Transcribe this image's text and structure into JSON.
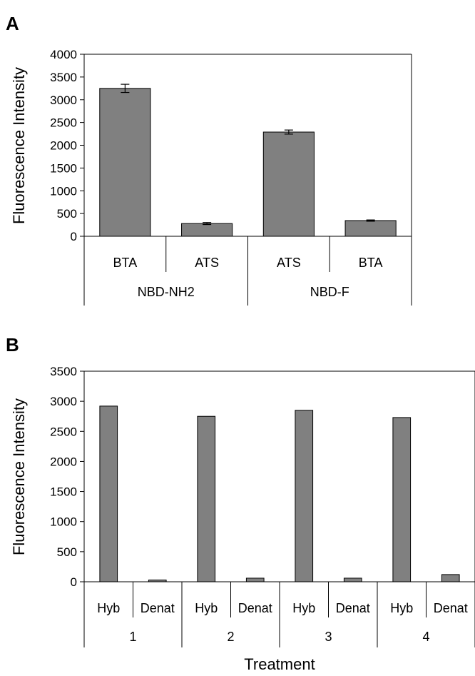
{
  "chart_data": [
    {
      "type": "bar",
      "panel_label": "A",
      "ylabel": "Fluorescence Intensity",
      "xlabel": "",
      "ylim": [
        0,
        4000
      ],
      "yticks": [
        0,
        500,
        1000,
        1500,
        2000,
        2500,
        3000,
        3500,
        4000
      ],
      "categories": [
        "BTA",
        "ATS",
        "ATS",
        "BTA"
      ],
      "groups": [
        {
          "label": "NBD-NH2",
          "span": 2
        },
        {
          "label": "NBD-F",
          "span": 2
        }
      ],
      "values": [
        3250,
        280,
        2290,
        345
      ],
      "errors": [
        90,
        22,
        45,
        14
      ],
      "bar_color": "#808080",
      "grid": false
    },
    {
      "type": "bar",
      "panel_label": "B",
      "ylabel": "Fluorescence Intensity",
      "xlabel": "Treatment",
      "ylim": [
        0,
        3500
      ],
      "yticks": [
        0,
        500,
        1000,
        1500,
        2000,
        2500,
        3000,
        3500
      ],
      "categories": [
        "Hyb",
        "Denat",
        "Hyb",
        "Denat",
        "Hyb",
        "Denat",
        "Hyb",
        "Denat"
      ],
      "groups": [
        {
          "label": "1",
          "span": 2
        },
        {
          "label": "2",
          "span": 2
        },
        {
          "label": "3",
          "span": 2
        },
        {
          "label": "4",
          "span": 2
        }
      ],
      "values": [
        2920,
        30,
        2750,
        60,
        2850,
        60,
        2730,
        120
      ],
      "bar_color": "#808080",
      "grid": false
    }
  ]
}
